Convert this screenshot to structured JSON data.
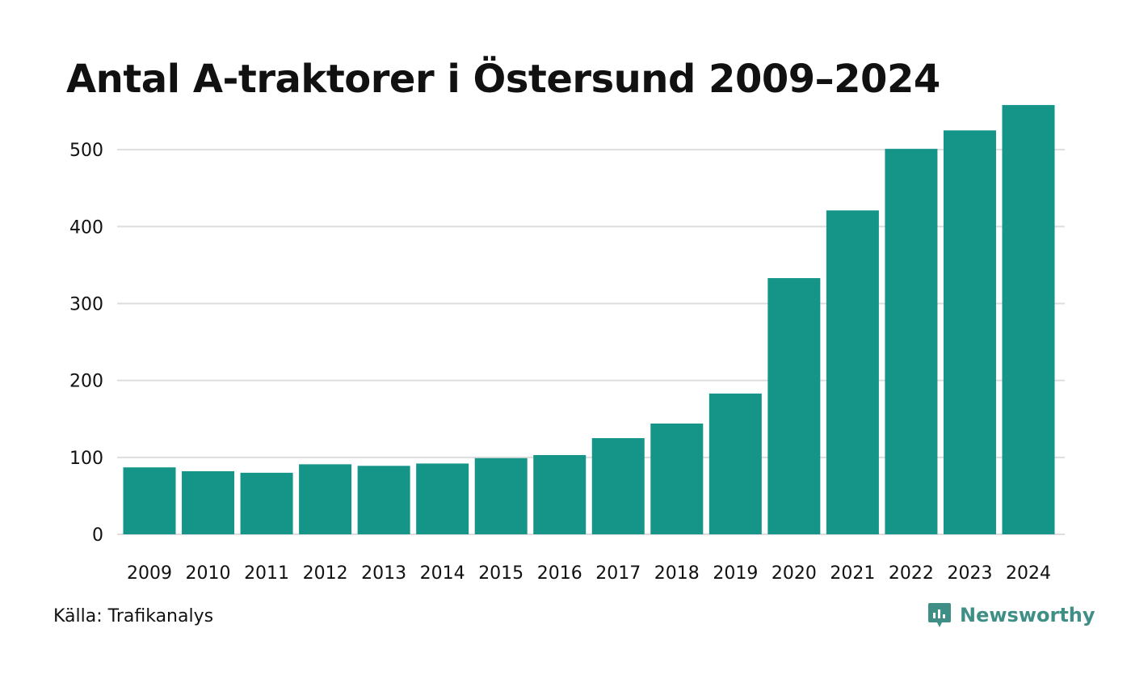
{
  "chart_data": {
    "type": "bar",
    "title": "Antal A-traktorer i Östersund 2009–2024",
    "xlabel": "",
    "ylabel": "",
    "categories": [
      "2009",
      "2010",
      "2011",
      "2012",
      "2013",
      "2014",
      "2015",
      "2016",
      "2017",
      "2018",
      "2019",
      "2020",
      "2021",
      "2022",
      "2023",
      "2024"
    ],
    "values": [
      87,
      82,
      80,
      91,
      89,
      92,
      99,
      103,
      125,
      144,
      183,
      333,
      421,
      501,
      525,
      558
    ],
    "ylim": [
      0,
      560
    ],
    "yticks": [
      0,
      100,
      200,
      300,
      400,
      500
    ],
    "grid": true,
    "bar_color": "#159588"
  },
  "source": "Källa: Trafikanalys",
  "brand": {
    "name": "Newsworthy",
    "icon": "newsworthy-logo-icon",
    "color": "#3f8f86"
  }
}
